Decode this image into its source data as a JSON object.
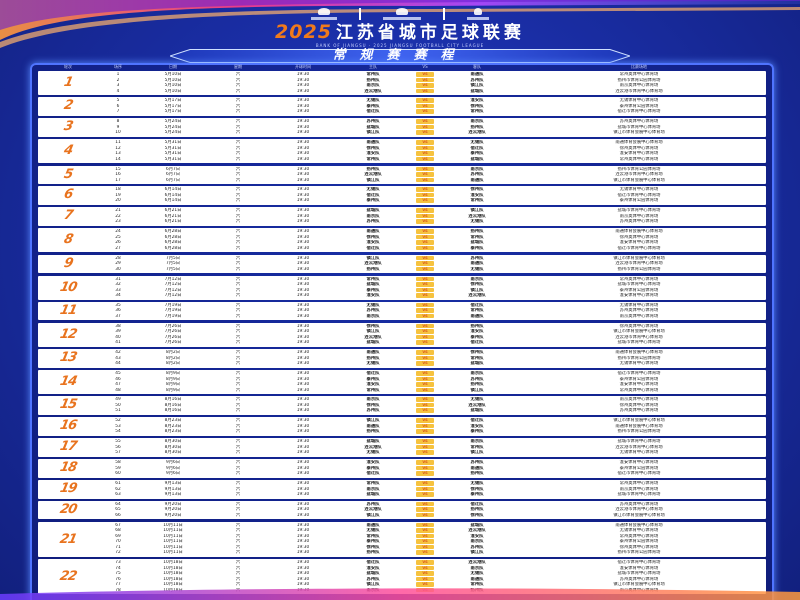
{
  "title": {
    "year": "2025",
    "name": "江苏省城市足球联赛",
    "subtitle": "BANK OF JIANGSU · 2025 JIANGSU FOOTBALL CITY LEAGUE",
    "banner": "常规赛赛程"
  },
  "colors": {
    "background": "#1a2ea6",
    "accent": "#e8731e",
    "vs_badge": "#f6c23e",
    "frame": "#4f74ff"
  },
  "table": {
    "headers": [
      "轮次",
      "场序",
      "日期",
      "星期",
      "开球时间",
      "主队",
      "VS",
      "客队",
      "比赛场地"
    ],
    "vs_label": "VS"
  },
  "venues": {
    "南京队": "南京奥体中心体育场",
    "无锡队": "无锡体育中心体育场",
    "徐州队": "徐州奥体中心体育场",
    "常州队": "常州奥体中心体育场",
    "苏州队": "苏州奥体中心体育场",
    "南通队": "南通体育会展中心体育场",
    "连云港队": "连云港市体育中心体育场",
    "淮安队": "淮安体育中心体育场",
    "盐城队": "盐城市体育中心体育场",
    "扬州队": "扬州市体育公园体育场",
    "镇江队": "镇江市体育会展中心体育场",
    "泰州队": "泰州体育公园体育场",
    "宿迁队": "宿迁市体育中心体育场"
  },
  "rounds": [
    {
      "round": "1",
      "matches": [
        [
          "1",
          "5月10日",
          "六",
          "19:30",
          "常州队",
          "南通队"
        ],
        [
          "2",
          "5月10日",
          "六",
          "19:30",
          "扬州队",
          "苏州队"
        ],
        [
          "3",
          "5月10日",
          "六",
          "19:30",
          "南京队",
          "镇江队"
        ],
        [
          "4",
          "5月10日",
          "六",
          "19:30",
          "连云港队",
          "盐城队"
        ]
      ]
    },
    {
      "round": "2",
      "matches": [
        [
          "5",
          "5月17日",
          "六",
          "19:30",
          "无锡队",
          "淮安队"
        ],
        [
          "6",
          "5月17日",
          "六",
          "19:30",
          "泰州队",
          "徐州队"
        ],
        [
          "7",
          "5月17日",
          "六",
          "19:30",
          "宿迁队",
          "常州队"
        ]
      ]
    },
    {
      "round": "3",
      "matches": [
        [
          "8",
          "5月24日",
          "六",
          "19:30",
          "苏州队",
          "南京队"
        ],
        [
          "9",
          "5月24日",
          "六",
          "19:30",
          "盐城队",
          "扬州队"
        ],
        [
          "10",
          "5月24日",
          "六",
          "19:30",
          "镇江队",
          "连云港队"
        ]
      ]
    },
    {
      "round": "4",
      "matches": [
        [
          "11",
          "5月31日",
          "六",
          "19:30",
          "南通队",
          "无锡队"
        ],
        [
          "12",
          "5月31日",
          "六",
          "19:30",
          "徐州队",
          "宿迁队"
        ],
        [
          "13",
          "5月31日",
          "六",
          "19:30",
          "淮安队",
          "泰州队"
        ],
        [
          "14",
          "5月31日",
          "六",
          "19:30",
          "常州队",
          "盐城队"
        ]
      ]
    },
    {
      "round": "5",
      "matches": [
        [
          "15",
          "6月7日",
          "六",
          "19:30",
          "扬州队",
          "南京队"
        ],
        [
          "16",
          "6月7日",
          "六",
          "19:30",
          "连云港队",
          "苏州队"
        ],
        [
          "17",
          "6月7日",
          "六",
          "19:30",
          "镇江队",
          "南通队"
        ]
      ]
    },
    {
      "round": "6",
      "matches": [
        [
          "18",
          "6月14日",
          "六",
          "19:30",
          "无锡队",
          "徐州队"
        ],
        [
          "19",
          "6月14日",
          "六",
          "19:30",
          "宿迁队",
          "淮安队"
        ],
        [
          "20",
          "6月14日",
          "六",
          "19:30",
          "泰州队",
          "常州队"
        ]
      ]
    },
    {
      "round": "7",
      "matches": [
        [
          "21",
          "6月21日",
          "六",
          "19:30",
          "盐城队",
          "镇江队"
        ],
        [
          "22",
          "6月21日",
          "六",
          "19:30",
          "南京队",
          "连云港队"
        ],
        [
          "23",
          "6月21日",
          "六",
          "19:30",
          "苏州队",
          "无锡队"
        ]
      ]
    },
    {
      "round": "8",
      "matches": [
        [
          "24",
          "6月28日",
          "六",
          "19:30",
          "南通队",
          "扬州队"
        ],
        [
          "25",
          "6月28日",
          "六",
          "19:30",
          "徐州队",
          "常州队"
        ],
        [
          "26",
          "6月28日",
          "六",
          "19:30",
          "淮安队",
          "盐城队"
        ],
        [
          "27",
          "6月28日",
          "六",
          "19:30",
          "宿迁队",
          "泰州队"
        ]
      ]
    },
    {
      "round": "9",
      "matches": [
        [
          "28",
          "7月5日",
          "六",
          "19:30",
          "镇江队",
          "苏州队"
        ],
        [
          "29",
          "7月5日",
          "六",
          "19:30",
          "连云港队",
          "南通队"
        ],
        [
          "30",
          "7月5日",
          "六",
          "19:30",
          "扬州队",
          "无锡队"
        ]
      ]
    },
    {
      "round": "10",
      "matches": [
        [
          "31",
          "7月12日",
          "六",
          "19:30",
          "常州队",
          "南京队"
        ],
        [
          "32",
          "7月12日",
          "六",
          "19:30",
          "盐城队",
          "徐州队"
        ],
        [
          "33",
          "7月12日",
          "六",
          "19:30",
          "泰州队",
          "镇江队"
        ],
        [
          "34",
          "7月12日",
          "六",
          "19:30",
          "淮安队",
          "连云港队"
        ]
      ]
    },
    {
      "round": "11",
      "matches": [
        [
          "35",
          "7月19日",
          "六",
          "19:30",
          "无锡队",
          "宿迁队"
        ],
        [
          "36",
          "7月19日",
          "六",
          "19:30",
          "苏州队",
          "常州队"
        ],
        [
          "37",
          "7月19日",
          "六",
          "19:30",
          "南京队",
          "南通队"
        ]
      ]
    },
    {
      "round": "12",
      "matches": [
        [
          "38",
          "7月26日",
          "六",
          "19:30",
          "徐州队",
          "扬州队"
        ],
        [
          "39",
          "7月26日",
          "六",
          "19:30",
          "镇江队",
          "淮安队"
        ],
        [
          "40",
          "7月26日",
          "六",
          "19:30",
          "连云港队",
          "泰州队"
        ],
        [
          "41",
          "7月26日",
          "六",
          "19:30",
          "盐城队",
          "宿迁队"
        ]
      ]
    },
    {
      "round": "13",
      "matches": [
        [
          "42",
          "8月2日",
          "六",
          "19:30",
          "南通队",
          "徐州队"
        ],
        [
          "43",
          "8月2日",
          "六",
          "19:30",
          "扬州队",
          "常州队"
        ],
        [
          "44",
          "8月2日",
          "六",
          "19:30",
          "无锡队",
          "盐城队"
        ]
      ]
    },
    {
      "round": "14",
      "matches": [
        [
          "45",
          "8月9日",
          "六",
          "19:30",
          "宿迁队",
          "南京队"
        ],
        [
          "46",
          "8月9日",
          "六",
          "19:30",
          "泰州队",
          "苏州队"
        ],
        [
          "47",
          "8月9日",
          "六",
          "19:30",
          "淮安队",
          "扬州队"
        ],
        [
          "48",
          "8月9日",
          "六",
          "19:30",
          "常州队",
          "镇江队"
        ]
      ]
    },
    {
      "round": "15",
      "matches": [
        [
          "49",
          "8月16日",
          "六",
          "19:30",
          "南京队",
          "无锡队"
        ],
        [
          "50",
          "8月16日",
          "六",
          "19:30",
          "徐州队",
          "连云港队"
        ],
        [
          "51",
          "8月16日",
          "六",
          "19:30",
          "苏州队",
          "盐城队"
        ]
      ]
    },
    {
      "round": "16",
      "matches": [
        [
          "52",
          "8月23日",
          "六",
          "19:30",
          "镇江队",
          "宿迁队"
        ],
        [
          "53",
          "8月23日",
          "六",
          "19:30",
          "南通队",
          "淮安队"
        ],
        [
          "54",
          "8月23日",
          "六",
          "19:30",
          "扬州队",
          "泰州队"
        ]
      ]
    },
    {
      "round": "17",
      "matches": [
        [
          "55",
          "8月30日",
          "六",
          "19:30",
          "盐城队",
          "南京队"
        ],
        [
          "56",
          "8月30日",
          "六",
          "19:30",
          "连云港队",
          "常州队"
        ],
        [
          "57",
          "8月30日",
          "六",
          "19:30",
          "无锡队",
          "镇江队"
        ]
      ]
    },
    {
      "round": "18",
      "matches": [
        [
          "58",
          "9月6日",
          "六",
          "19:30",
          "淮安队",
          "苏州队"
        ],
        [
          "59",
          "9月6日",
          "六",
          "19:30",
          "泰州队",
          "南通队"
        ],
        [
          "60",
          "9月6日",
          "六",
          "19:30",
          "宿迁队",
          "扬州队"
        ]
      ]
    },
    {
      "round": "19",
      "matches": [
        [
          "61",
          "9月13日",
          "六",
          "19:30",
          "常州队",
          "无锡队"
        ],
        [
          "62",
          "9月13日",
          "六",
          "19:30",
          "南京队",
          "徐州队"
        ],
        [
          "63",
          "9月13日",
          "六",
          "19:30",
          "盐城队",
          "泰州队"
        ]
      ]
    },
    {
      "round": "20",
      "matches": [
        [
          "64",
          "9月20日",
          "六",
          "19:30",
          "苏州队",
          "宿迁队"
        ],
        [
          "65",
          "9月20日",
          "六",
          "19:30",
          "连云港队",
          "扬州队"
        ],
        [
          "66",
          "9月20日",
          "六",
          "19:30",
          "镇江队",
          "徐州队"
        ]
      ]
    },
    {
      "round": "21",
      "matches": [
        [
          "67",
          "10月11日",
          "六",
          "19:30",
          "南通队",
          "盐城队"
        ],
        [
          "68",
          "10月11日",
          "六",
          "19:30",
          "无锡队",
          "连云港队"
        ],
        [
          "69",
          "10月11日",
          "六",
          "19:30",
          "常州队",
          "淮安队"
        ],
        [
          "70",
          "10月11日",
          "六",
          "19:30",
          "泰州队",
          "南京队"
        ],
        [
          "71",
          "10月11日",
          "六",
          "19:30",
          "徐州队",
          "苏州队"
        ],
        [
          "72",
          "10月11日",
          "六",
          "19:30",
          "扬州队",
          "镇江队"
        ]
      ]
    },
    {
      "round": "22",
      "matches": [
        [
          "73",
          "10月18日",
          "六",
          "19:30",
          "宿迁队",
          "连云港队"
        ],
        [
          "74",
          "10月18日",
          "六",
          "19:30",
          "淮安队",
          "南京队"
        ],
        [
          "75",
          "10月18日",
          "六",
          "19:30",
          "盐城队",
          "无锡队"
        ],
        [
          "76",
          "10月18日",
          "六",
          "19:30",
          "苏州队",
          "南通队"
        ],
        [
          "77",
          "10月18日",
          "六",
          "19:30",
          "镇江队",
          "常州队"
        ],
        [
          "78",
          "10月18日",
          "六",
          "19:30",
          "南京队",
          "扬州队"
        ]
      ]
    }
  ]
}
